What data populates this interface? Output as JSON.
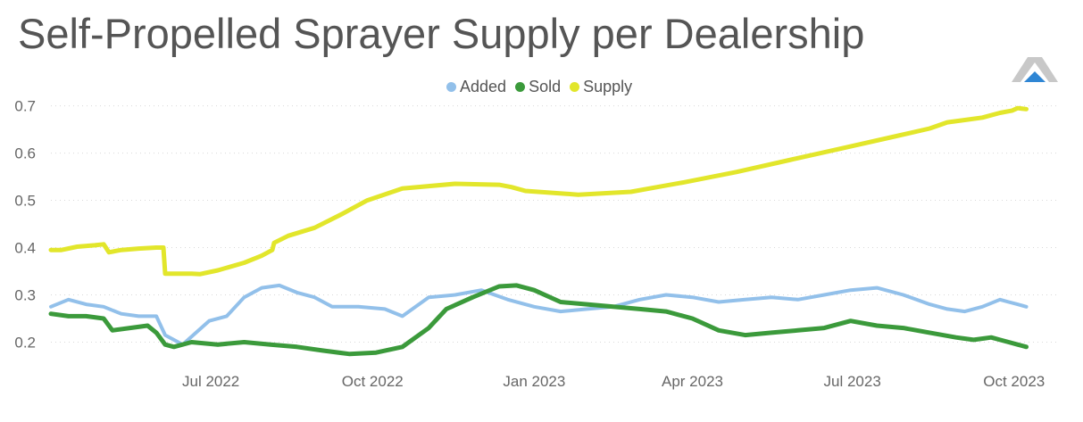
{
  "chart_data": {
    "type": "line",
    "title": "Self-Propelled Sprayer Supply per Dealership",
    "xlabel": "",
    "ylabel": "",
    "ylim": [
      0.15,
      0.72
    ],
    "x_range": [
      "2022-04-01",
      "2023-10-25"
    ],
    "y_ticks": [
      "0.2",
      "0.3",
      "0.4",
      "0.5",
      "0.6",
      "0.7"
    ],
    "x_ticks": [
      "Jul 2022",
      "Oct 2022",
      "Jan 2023",
      "Apr 2023",
      "Jul 2023",
      "Oct 2023"
    ],
    "legend": [
      "Added",
      "Sold",
      "Supply"
    ],
    "legend_position": "top-center",
    "series": [
      {
        "name": "Supply",
        "color": "#e2e62b",
        "x": [
          0,
          6,
          15,
          25,
          30,
          33,
          40,
          50,
          60,
          64,
          65,
          72,
          80,
          85,
          95,
          110,
          120,
          126,
          127,
          135,
          150,
          165,
          180,
          200,
          230,
          255,
          262,
          270,
          300,
          330,
          345,
          360,
          390,
          420,
          450,
          480,
          500,
          510,
          520,
          530,
          540,
          547,
          550,
          555
        ],
        "values": [
          0.395,
          0.395,
          0.402,
          0.405,
          0.407,
          0.39,
          0.395,
          0.398,
          0.4,
          0.4,
          0.345,
          0.345,
          0.345,
          0.344,
          0.352,
          0.368,
          0.383,
          0.395,
          0.41,
          0.425,
          0.442,
          0.47,
          0.5,
          0.525,
          0.535,
          0.533,
          0.528,
          0.52,
          0.512,
          0.518,
          0.528,
          0.538,
          0.56,
          0.585,
          0.61,
          0.635,
          0.652,
          0.665,
          0.67,
          0.675,
          0.685,
          0.69,
          0.695,
          0.693
        ]
      },
      {
        "name": "Added",
        "color": "#92c0ea",
        "x": [
          0,
          10,
          20,
          30,
          40,
          50,
          60,
          65,
          75,
          90,
          100,
          110,
          120,
          130,
          140,
          150,
          160,
          175,
          190,
          200,
          215,
          230,
          245,
          260,
          275,
          290,
          305,
          320,
          335,
          350,
          365,
          380,
          395,
          410,
          425,
          440,
          455,
          470,
          485,
          500,
          510,
          520,
          530,
          540,
          545,
          550,
          555
        ],
        "values": [
          0.275,
          0.29,
          0.28,
          0.275,
          0.26,
          0.255,
          0.255,
          0.215,
          0.195,
          0.245,
          0.255,
          0.295,
          0.315,
          0.32,
          0.305,
          0.295,
          0.275,
          0.275,
          0.27,
          0.255,
          0.295,
          0.3,
          0.31,
          0.29,
          0.275,
          0.265,
          0.27,
          0.275,
          0.29,
          0.3,
          0.295,
          0.285,
          0.29,
          0.295,
          0.29,
          0.3,
          0.31,
          0.315,
          0.3,
          0.28,
          0.27,
          0.265,
          0.275,
          0.29,
          0.285,
          0.28,
          0.275
        ]
      },
      {
        "name": "Sold",
        "color": "#3b9a3b",
        "x": [
          0,
          10,
          20,
          30,
          35,
          45,
          55,
          60,
          65,
          70,
          80,
          95,
          110,
          125,
          140,
          155,
          170,
          185,
          200,
          215,
          225,
          240,
          255,
          265,
          275,
          290,
          305,
          320,
          335,
          350,
          365,
          380,
          395,
          410,
          425,
          440,
          455,
          470,
          485,
          500,
          515,
          525,
          535,
          540,
          545,
          550,
          555
        ],
        "values": [
          0.26,
          0.255,
          0.255,
          0.25,
          0.225,
          0.23,
          0.235,
          0.22,
          0.195,
          0.19,
          0.2,
          0.195,
          0.2,
          0.195,
          0.19,
          0.182,
          0.175,
          0.178,
          0.19,
          0.23,
          0.27,
          0.295,
          0.318,
          0.32,
          0.31,
          0.285,
          0.28,
          0.275,
          0.27,
          0.265,
          0.25,
          0.225,
          0.215,
          0.22,
          0.225,
          0.23,
          0.245,
          0.235,
          0.23,
          0.22,
          0.21,
          0.205,
          0.21,
          0.205,
          0.2,
          0.195,
          0.19
        ]
      }
    ]
  }
}
